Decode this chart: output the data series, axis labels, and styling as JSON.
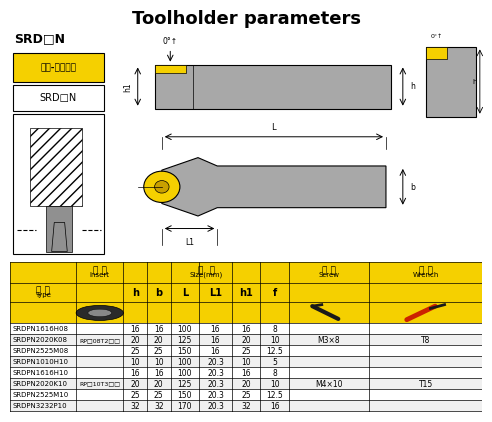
{
  "title": "Toolholder parameters",
  "title_fontsize": 13,
  "background_color": "#ffffff",
  "label_srd": "SRD□N",
  "label_outer": "外径-端面切削",
  "label_srd2": "SRD□N",
  "rows": [
    [
      "SRDPN1616H08",
      "",
      "16",
      "16",
      "100",
      "16",
      "16",
      "8",
      "",
      ""
    ],
    [
      "SRDPN2020K08",
      "RP□08T2□□",
      "20",
      "20",
      "125",
      "16",
      "20",
      "10",
      "M3×8",
      "T8"
    ],
    [
      "SRDPN2525M08",
      "",
      "25",
      "25",
      "150",
      "16",
      "25",
      "12.5",
      "",
      ""
    ],
    [
      "SRDPN1010H10",
      "",
      "10",
      "10",
      "100",
      "20.3",
      "10",
      "5",
      "",
      ""
    ],
    [
      "SRDPN1616H10",
      "",
      "16",
      "16",
      "100",
      "20.3",
      "16",
      "8",
      "",
      ""
    ],
    [
      "SRDPN2020K10",
      "RP□10T3□□",
      "20",
      "20",
      "125",
      "20.3",
      "20",
      "10",
      "M4×10",
      "T15"
    ],
    [
      "SRDPN2525M10",
      "",
      "25",
      "25",
      "150",
      "20.3",
      "25",
      "12.5",
      "",
      ""
    ],
    [
      "SRDPN3232P10",
      "",
      "32",
      "32",
      "170",
      "20.3",
      "32",
      "16",
      "",
      ""
    ]
  ],
  "yellow": "#F5D000",
  "gray_tool": "#A8A8A8",
  "gray_tool2": "#909090",
  "col_positions": [
    0,
    14,
    24,
    29,
    34,
    40,
    47,
    53,
    59,
    76,
    100
  ],
  "header_row1_labels": [
    "刀 片",
    "Insert",
    "规 格",
    "Size(mm)",
    "螺 钉",
    "Screw",
    "扬 手",
    "Wrench"
  ],
  "header_row2_labels": [
    "型 号",
    "Type",
    "h",
    "b",
    "L",
    "L1",
    "h1",
    "f"
  ],
  "screw_group1": [
    "M3×8",
    "T8"
  ],
  "screw_group2": [
    "M4×10",
    "T15"
  ]
}
